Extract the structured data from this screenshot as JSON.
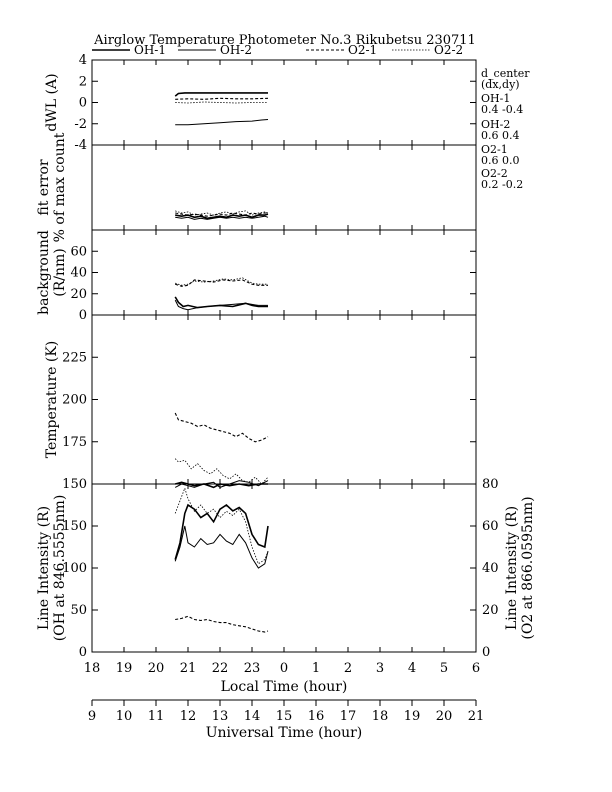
{
  "title": "Airglow Temperature Photometer No.3  Rikubetsu   230711",
  "legend": [
    {
      "name": "OH-1",
      "dash": "solid"
    },
    {
      "name": "OH-2",
      "dash": "solid-thin"
    },
    {
      "name": "O2-1",
      "dash": "dashed"
    },
    {
      "name": "O2-2",
      "dash": "dotted"
    }
  ],
  "side_labels": [
    "d_center",
    "(dx,dy)",
    "OH-1",
    "0.4  -0.4",
    "OH-2",
    "0.6  0.4",
    "O2-1",
    "0.6  0.0",
    "O2-2",
    "0.2  -0.2"
  ],
  "x_axis": {
    "label": "Local Time (hour)",
    "range": [
      18,
      30
    ],
    "tick_labels": [
      "18",
      "19",
      "20",
      "21",
      "22",
      "23",
      "0",
      "1",
      "2",
      "3",
      "4",
      "5",
      "6"
    ]
  },
  "x2_axis": {
    "label": "Universal Time (hour)",
    "tick_labels": [
      "9",
      "10",
      "11",
      "12",
      "13",
      "14",
      "15",
      "16",
      "17",
      "18",
      "19",
      "20",
      "21"
    ]
  },
  "chart_data": [
    {
      "type": "line",
      "panel": "dWL",
      "ylabel": "dWL (A)",
      "ylim": [
        -4,
        4
      ],
      "yticks": [
        "4",
        "2",
        "0",
        "-2",
        "-4"
      ],
      "series": [
        {
          "name": "OH-1",
          "x": [
            20.6,
            20.7,
            20.9,
            21.2,
            21.6,
            22.0,
            22.5,
            23.0,
            23.5
          ],
          "y": [
            0.6,
            0.85,
            0.9,
            0.9,
            0.9,
            0.9,
            0.9,
            0.9,
            0.9
          ]
        },
        {
          "name": "OH-2",
          "x": [
            20.6,
            21.0,
            21.5,
            22.0,
            22.5,
            23.0,
            23.3,
            23.5
          ],
          "y": [
            -2.1,
            -2.1,
            -2.0,
            -1.9,
            -1.8,
            -1.75,
            -1.65,
            -1.6
          ]
        },
        {
          "name": "O2-1",
          "x": [
            20.6,
            21.0,
            21.5,
            22.0,
            22.5,
            23.0,
            23.5
          ],
          "y": [
            0.3,
            0.35,
            0.3,
            0.4,
            0.35,
            0.35,
            0.4
          ]
        },
        {
          "name": "O2-2",
          "x": [
            20.6,
            21.0,
            21.5,
            22.0,
            22.5,
            23.0,
            23.5
          ],
          "y": [
            0.0,
            -0.05,
            0.05,
            0.0,
            -0.05,
            0.0,
            0.0
          ]
        }
      ]
    },
    {
      "type": "line",
      "panel": "fit-error",
      "ylabel": "fit error",
      "ylabel2": "% of max count",
      "ylim": [
        0,
        4
      ],
      "yticks": [],
      "series": [
        {
          "name": "OH-1",
          "x": [
            20.6,
            20.8,
            21.0,
            21.2,
            21.4,
            21.6,
            21.8,
            22.0,
            22.2,
            22.4,
            22.6,
            22.8,
            23.0,
            23.2,
            23.4,
            23.5
          ],
          "y": [
            0.7,
            0.65,
            0.7,
            0.6,
            0.65,
            0.55,
            0.6,
            0.65,
            0.6,
            0.7,
            0.65,
            0.7,
            0.6,
            0.7,
            0.7,
            0.75
          ]
        },
        {
          "name": "OH-2",
          "x": [
            20.6,
            20.8,
            21.0,
            21.2,
            21.4,
            21.6,
            21.8,
            22.0,
            22.2,
            22.4,
            22.6,
            22.8,
            23.0,
            23.2,
            23.4,
            23.5
          ],
          "y": [
            0.6,
            0.55,
            0.6,
            0.5,
            0.55,
            0.5,
            0.55,
            0.6,
            0.55,
            0.6,
            0.55,
            0.6,
            0.55,
            0.6,
            0.65,
            0.6
          ]
        },
        {
          "name": "O2-1",
          "x": [
            20.6,
            20.8,
            21.0,
            21.2,
            21.4,
            21.6,
            21.8,
            22.0,
            22.2,
            22.4,
            22.6,
            22.8,
            23.0,
            23.2,
            23.4,
            23.5
          ],
          "y": [
            0.8,
            0.75,
            0.7,
            0.75,
            0.7,
            0.65,
            0.7,
            0.75,
            0.7,
            0.8,
            0.75,
            0.7,
            0.8,
            0.75,
            0.8,
            0.8
          ]
        },
        {
          "name": "O2-2",
          "x": [
            20.6,
            20.8,
            21.0,
            21.2,
            21.4,
            21.6,
            21.8,
            22.0,
            22.2,
            22.4,
            22.6,
            22.8,
            23.0,
            23.2,
            23.4,
            23.5
          ],
          "y": [
            0.9,
            0.8,
            0.85,
            0.7,
            0.75,
            0.8,
            0.7,
            0.8,
            0.85,
            0.75,
            0.85,
            0.9,
            0.7,
            0.8,
            0.85,
            0.8
          ]
        }
      ]
    },
    {
      "type": "line",
      "panel": "background",
      "ylabel": "background",
      "ylabel2": "(R/nm)",
      "ylim": [
        0,
        80
      ],
      "yticks": [
        "60",
        "40",
        "20",
        "0"
      ],
      "series": [
        {
          "name": "OH-1",
          "x": [
            20.6,
            20.7,
            20.85,
            21.0,
            21.3,
            21.6,
            22.0,
            22.4,
            22.8,
            23.0,
            23.2,
            23.5
          ],
          "y": [
            17,
            12,
            8,
            9,
            7,
            8,
            9,
            8,
            11,
            9,
            8,
            8
          ]
        },
        {
          "name": "OH-2",
          "x": [
            20.6,
            20.7,
            20.85,
            21.0,
            21.3,
            21.6,
            22.0,
            22.4,
            22.8,
            23.0,
            23.2,
            23.5
          ],
          "y": [
            14,
            8,
            6,
            5,
            7,
            8,
            9,
            10,
            11,
            10,
            9,
            9
          ]
        },
        {
          "name": "O2-1",
          "x": [
            20.6,
            20.8,
            21.0,
            21.2,
            21.5,
            21.8,
            22.1,
            22.4,
            22.7,
            23.0,
            23.2,
            23.5
          ],
          "y": [
            29,
            27,
            28,
            33,
            32,
            31,
            33,
            32,
            33,
            29,
            28,
            28
          ]
        },
        {
          "name": "O2-2",
          "x": [
            20.6,
            20.8,
            21.0,
            21.2,
            21.5,
            21.8,
            22.1,
            22.4,
            22.7,
            23.0,
            23.2,
            23.5
          ],
          "y": [
            30,
            28,
            29,
            32,
            31,
            32,
            34,
            33,
            35,
            30,
            29,
            29
          ]
        }
      ]
    },
    {
      "type": "line",
      "panel": "temperature",
      "ylabel": "Temperature (K)",
      "ylim": [
        150,
        250
      ],
      "yticks": [
        "225",
        "200",
        "175",
        "150"
      ],
      "series": [
        {
          "name": "OH-1",
          "x": [
            20.6,
            20.8,
            21.0,
            21.2,
            21.5,
            21.8,
            22.0,
            22.3,
            22.6,
            22.9,
            23.2,
            23.5
          ],
          "y": [
            150,
            151,
            150,
            149,
            150,
            148,
            150,
            149,
            150,
            149,
            150,
            150
          ]
        },
        {
          "name": "OH-2",
          "x": [
            20.6,
            20.8,
            21.0,
            21.2,
            21.5,
            21.8,
            22.0,
            22.3,
            22.6,
            22.9,
            23.2,
            23.5
          ],
          "y": [
            148,
            150,
            149,
            148,
            150,
            151,
            148,
            150,
            152,
            151,
            149,
            152
          ]
        },
        {
          "name": "O2-1",
          "x": [
            20.6,
            20.7,
            20.9,
            21.1,
            21.3,
            21.5,
            21.7,
            21.9,
            22.1,
            22.3,
            22.5,
            22.7,
            22.9,
            23.1,
            23.3,
            23.5
          ],
          "y": [
            192,
            188,
            187,
            186,
            184,
            185,
            183,
            182,
            181,
            180,
            178,
            180,
            177,
            175,
            176,
            178
          ]
        },
        {
          "name": "O2-2",
          "x": [
            20.6,
            20.7,
            20.9,
            21.1,
            21.3,
            21.5,
            21.7,
            21.9,
            22.1,
            22.3,
            22.5,
            22.7,
            22.9,
            23.1,
            23.3,
            23.5
          ],
          "y": [
            165,
            163,
            164,
            159,
            162,
            158,
            156,
            159,
            155,
            153,
            156,
            152,
            151,
            154,
            150,
            154
          ]
        }
      ]
    },
    {
      "type": "line",
      "panel": "line-intensity",
      "ylabel": "Line Intensity (R)",
      "ylabel2": "(OH at 846.5555nm)",
      "y2label": "Line Intensity (R)",
      "y2label2": "(O2 at 866.0595nm)",
      "ylim": [
        0,
        200
      ],
      "y2lim": [
        0,
        80
      ],
      "yticks": [
        "150",
        "100",
        "50",
        "0"
      ],
      "y2ticks": [
        "80",
        "60",
        "40",
        "20",
        "0"
      ],
      "series": [
        {
          "name": "OH-1",
          "axis": "left",
          "x": [
            20.6,
            20.75,
            20.9,
            21.0,
            21.2,
            21.4,
            21.6,
            21.8,
            22.0,
            22.2,
            22.4,
            22.6,
            22.8,
            23.0,
            23.2,
            23.4,
            23.5
          ],
          "y": [
            110,
            130,
            165,
            175,
            170,
            160,
            165,
            155,
            170,
            175,
            168,
            172,
            165,
            140,
            128,
            125,
            150
          ]
        },
        {
          "name": "OH-2",
          "axis": "left",
          "x": [
            20.6,
            20.75,
            20.9,
            21.0,
            21.2,
            21.4,
            21.6,
            21.8,
            22.0,
            22.2,
            22.4,
            22.6,
            22.8,
            23.0,
            23.2,
            23.4,
            23.5
          ],
          "y": [
            108,
            125,
            150,
            130,
            125,
            135,
            128,
            130,
            140,
            132,
            128,
            140,
            130,
            112,
            100,
            105,
            120
          ]
        },
        {
          "name": "O2-1",
          "axis": "right",
          "x": [
            20.6,
            20.8,
            21.0,
            21.2,
            21.4,
            21.6,
            21.8,
            22.0,
            22.2,
            22.4,
            22.6,
            22.8,
            23.0,
            23.2,
            23.4,
            23.5
          ],
          "y": [
            15.5,
            16,
            17,
            15.5,
            15,
            15.5,
            14.5,
            14,
            14,
            13,
            12.5,
            12,
            11,
            10,
            9.5,
            10
          ]
        },
        {
          "name": "O2-2",
          "axis": "right",
          "x": [
            20.6,
            20.75,
            20.9,
            21.0,
            21.2,
            21.4,
            21.6,
            21.8,
            22.0,
            22.2,
            22.4,
            22.6,
            22.8,
            23.0,
            23.2,
            23.4,
            23.5
          ],
          "y": [
            66,
            72,
            78,
            73,
            67,
            70,
            66,
            68,
            64,
            67,
            65,
            68,
            62,
            50,
            42,
            44,
            48
          ]
        }
      ]
    }
  ]
}
